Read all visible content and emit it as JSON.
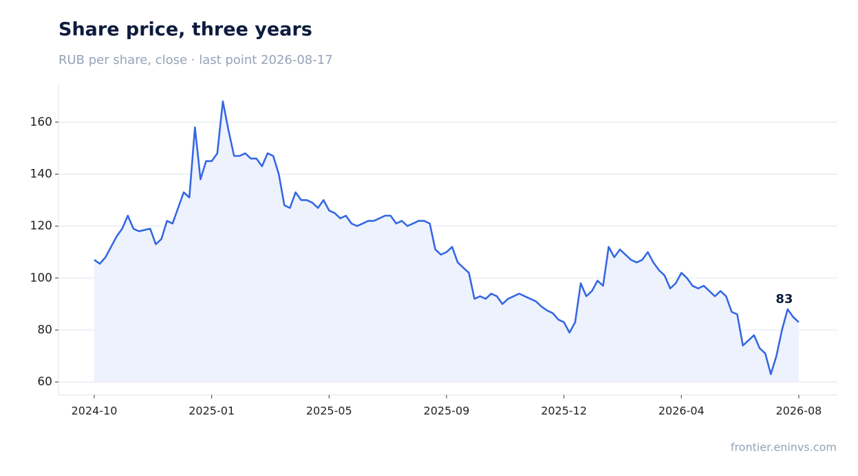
{
  "chart_data": {
    "type": "line",
    "title": "Share price, three years",
    "subtitle": "RUB per share, close · last point 2026-08-17",
    "source": "frontier.eninvs.com",
    "color": "#3467e3",
    "area_color": "#edf2fc",
    "grid": true,
    "values": [
      107,
      105.5,
      108,
      112,
      116,
      119,
      124,
      119,
      118,
      118.5,
      119,
      113,
      115,
      122,
      121,
      127,
      133,
      131,
      158,
      138,
      145,
      145,
      148,
      168,
      157,
      147,
      147,
      148,
      146,
      146,
      143,
      148,
      147,
      140,
      128,
      127,
      133,
      130,
      130,
      129,
      127,
      130,
      126,
      125,
      123,
      124,
      121,
      120,
      121,
      122,
      122,
      123,
      124,
      124,
      121,
      122,
      120,
      121,
      122,
      122,
      121,
      111,
      109,
      110,
      112,
      106,
      104,
      102,
      92,
      93,
      92,
      94,
      93,
      90,
      92,
      93,
      94,
      93,
      92,
      91,
      89,
      87.5,
      86.5,
      84,
      83,
      79,
      83,
      98,
      93,
      95,
      99,
      97,
      112,
      108,
      111,
      109,
      107,
      106,
      107,
      110,
      106,
      103,
      101,
      96,
      98,
      102,
      100,
      97,
      96,
      97,
      95,
      93,
      95,
      93,
      87,
      86,
      74,
      76,
      78,
      73,
      71,
      63,
      70,
      80,
      88,
      85,
      83
    ],
    "xlim": [
      -6.4,
      132.9
    ],
    "xticks": [
      {
        "value": 0,
        "label": "2024-10"
      },
      {
        "value": 21,
        "label": "2025-01"
      },
      {
        "value": 42,
        "label": "2025-05"
      },
      {
        "value": 63,
        "label": "2025-09"
      },
      {
        "value": 84,
        "label": "2025-12"
      },
      {
        "value": 105,
        "label": "2026-04"
      },
      {
        "value": 126,
        "label": "2026-08"
      }
    ],
    "ylim": [
      55,
      174.5
    ],
    "yticks": [
      60,
      80,
      100,
      120,
      140,
      160
    ]
  }
}
